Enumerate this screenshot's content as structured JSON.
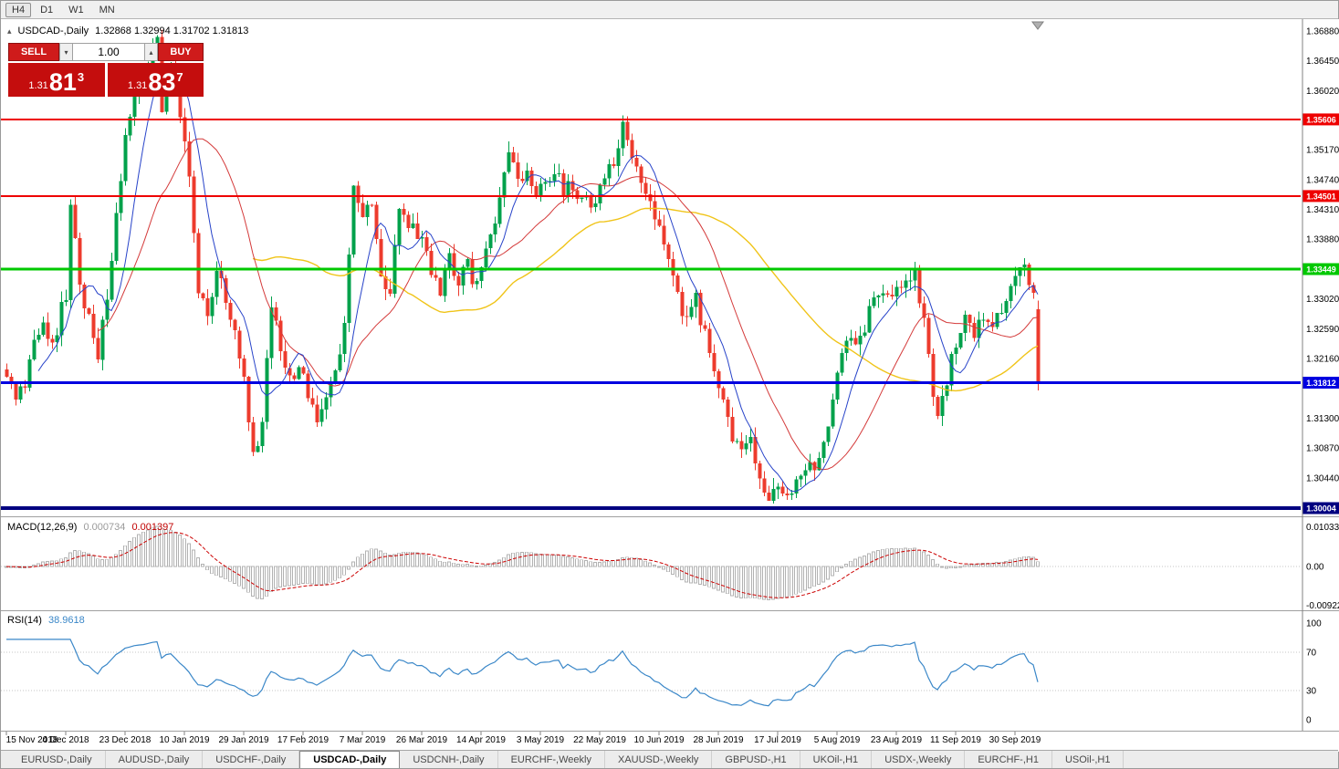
{
  "toolbar": {
    "timeframes": [
      "H4",
      "D1",
      "W1",
      "MN"
    ],
    "highlighted": "H4"
  },
  "header": {
    "symbol": "USDCAD-,Daily",
    "quote": "1.32868 1.32994 1.31702 1.31813"
  },
  "icons": {
    "collapse": "▴",
    "caret_down": "▾",
    "caret_up": "▴"
  },
  "trade": {
    "sell_label": "SELL",
    "buy_label": "BUY",
    "volume": "1.00",
    "sell_price": {
      "prefix": "1.31",
      "big": "81",
      "pip": "3"
    },
    "buy_price": {
      "prefix": "1.31",
      "big": "83",
      "pip": "7"
    }
  },
  "indicators": {
    "macd": {
      "name": "MACD(12,26,9)",
      "value_main": "0.000734",
      "value_signal": "0.001397"
    },
    "rsi": {
      "name": "RSI(14)",
      "value": "38.9618"
    }
  },
  "tabs": {
    "items": [
      {
        "label": "EURUSD-,Daily",
        "active": false
      },
      {
        "label": "AUDUSD-,Daily",
        "active": false
      },
      {
        "label": "USDCHF-,Daily",
        "active": false
      },
      {
        "label": "USDCAD-,Daily",
        "active": true
      },
      {
        "label": "USDCNH-,Daily",
        "active": false
      },
      {
        "label": "EURCHF-,Weekly",
        "active": false
      },
      {
        "label": "XAUUSD-,Weekly",
        "active": false
      },
      {
        "label": "GBPUSD-,H1",
        "active": false
      },
      {
        "label": "UKOil-,H1",
        "active": false
      },
      {
        "label": "USDX-,Weekly",
        "active": false
      },
      {
        "label": "EURCHF-,H1",
        "active": false
      },
      {
        "label": "USOil-,H1",
        "active": false
      }
    ]
  },
  "chart_data": {
    "type": "candlestick",
    "symbol": "USDCAD",
    "timeframe": "Daily",
    "last_ohlc": {
      "open": 1.32868,
      "high": 1.32994,
      "low": 1.31702,
      "close": 1.31813
    },
    "candle_count": 227,
    "price_range": [
      1.2986,
      1.3705
    ],
    "y_axis_ticks": [
      "1.36880",
      "1.36450",
      "1.36020",
      "1.35170",
      "1.34740",
      "1.34310",
      "1.33880",
      "1.33020",
      "1.32590",
      "1.32160",
      "1.31300",
      "1.30870",
      "1.30440"
    ],
    "x_axis_labels": [
      "15 Nov 2018",
      "4 Dec 2018",
      "23 Dec 2018",
      "10 Jan 2019",
      "29 Jan 2019",
      "17 Feb 2019",
      "7 Mar 2019",
      "26 Mar 2019",
      "14 Apr 2019",
      "3 May 2019",
      "22 May 2019",
      "10 Jun 2019",
      "28 Jun 2019",
      "17 Jul 2019",
      "5 Aug 2019",
      "23 Aug 2019",
      "11 Sep 2019",
      "30 Sep 2019"
    ],
    "x_label_step": 13,
    "levels": [
      {
        "name": "resistance-upper",
        "price": 1.35606,
        "label": "1.35606",
        "color": "#ee0000",
        "width": 2
      },
      {
        "name": "resistance-lower",
        "price": 1.34501,
        "label": "1.34501",
        "color": "#ee0000",
        "width": 2
      },
      {
        "name": "pivot-green",
        "price": 1.33449,
        "label": "1.33449",
        "color": "#00c800",
        "width": 3
      },
      {
        "name": "support-blue",
        "price": 1.31812,
        "label": "1.31812",
        "color": "#0000e0",
        "width": 3
      },
      {
        "name": "support-navy",
        "price": 1.30004,
        "label": "1.30004",
        "color": "#000080",
        "width": 4
      }
    ],
    "moving_averages": [
      {
        "period": 55,
        "color": "#f0c419",
        "width": 1.4
      },
      {
        "period": 21,
        "color": "#d43a3a",
        "width": 1
      },
      {
        "period": 8,
        "color": "#2743c9",
        "width": 1
      }
    ],
    "macd_axis": [
      "0.0103311",
      "0.00",
      "-0.0092203"
    ],
    "rsi_axis": [
      "100",
      "70",
      "30",
      "0"
    ],
    "rsi_levels": [
      70,
      30
    ],
    "rsi_last_value": 38.9618,
    "colors": {
      "bull": "#00a14b",
      "bear": "#ed3b2d",
      "macd_hist_stroke": "#b2b2b2",
      "macd_signal": "#cc0000",
      "rsi": "#3a87c8"
    },
    "price_path_anchors": [
      [
        0,
        1.32
      ],
      [
        2,
        1.3145
      ],
      [
        4,
        1.3185
      ],
      [
        6,
        1.324
      ],
      [
        8,
        1.3272
      ],
      [
        10,
        1.323
      ],
      [
        12,
        1.329
      ],
      [
        13,
        1.33
      ],
      [
        14,
        1.3435
      ],
      [
        16,
        1.333
      ],
      [
        18,
        1.327
      ],
      [
        20,
        1.3225
      ],
      [
        22,
        1.331
      ],
      [
        24,
        1.342
      ],
      [
        26,
        1.353
      ],
      [
        28,
        1.359
      ],
      [
        30,
        1.363
      ],
      [
        32,
        1.366
      ],
      [
        33,
        1.3685
      ],
      [
        34,
        1.356
      ],
      [
        35,
        1.362
      ],
      [
        36,
        1.365
      ],
      [
        38,
        1.356
      ],
      [
        40,
        1.348
      ],
      [
        41,
        1.339
      ],
      [
        42,
        1.331
      ],
      [
        44,
        1.328
      ],
      [
        46,
        1.3348
      ],
      [
        48,
        1.33
      ],
      [
        50,
        1.326
      ],
      [
        52,
        1.318
      ],
      [
        54,
        1.3075
      ],
      [
        56,
        1.312
      ],
      [
        58,
        1.329
      ],
      [
        60,
        1.323
      ],
      [
        62,
        1.318
      ],
      [
        64,
        1.321
      ],
      [
        66,
        1.3165
      ],
      [
        68,
        1.3125
      ],
      [
        70,
        1.315
      ],
      [
        72,
        1.32
      ],
      [
        74,
        1.326
      ],
      [
        76,
        1.3455
      ],
      [
        78,
        1.342
      ],
      [
        80,
        1.344
      ],
      [
        82,
        1.333
      ],
      [
        84,
        1.331
      ],
      [
        86,
        1.344
      ],
      [
        88,
        1.341
      ],
      [
        91,
        1.338
      ],
      [
        93,
        1.334
      ],
      [
        95,
        1.331
      ],
      [
        97,
        1.336
      ],
      [
        99,
        1.333
      ],
      [
        101,
        1.335
      ],
      [
        103,
        1.332
      ],
      [
        104,
        1.334
      ],
      [
        106,
        1.339
      ],
      [
        108,
        1.345
      ],
      [
        110,
        1.352
      ],
      [
        112,
        1.347
      ],
      [
        114,
        1.349
      ],
      [
        116,
        1.3445
      ],
      [
        118,
        1.347
      ],
      [
        120,
        1.349
      ],
      [
        122,
        1.3455
      ],
      [
        124,
        1.3465
      ],
      [
        126,
        1.3445
      ],
      [
        128,
        1.344
      ],
      [
        130,
        1.346
      ],
      [
        133,
        1.35
      ],
      [
        135,
        1.356
      ],
      [
        137,
        1.3505
      ],
      [
        139,
        1.347
      ],
      [
        141,
        1.344
      ],
      [
        143,
        1.34
      ],
      [
        145,
        1.336
      ],
      [
        147,
        1.331
      ],
      [
        149,
        1.3268
      ],
      [
        151,
        1.33
      ],
      [
        153,
        1.325
      ],
      [
        155,
        1.3206
      ],
      [
        156,
        1.318
      ],
      [
        157,
        1.315
      ],
      [
        159,
        1.3108
      ],
      [
        161,
        1.3085
      ],
      [
        163,
        1.3095
      ],
      [
        165,
        1.304
      ],
      [
        167,
        1.301
      ],
      [
        169,
        1.3025
      ],
      [
        171,
        1.3008
      ],
      [
        173,
        1.303
      ],
      [
        175,
        1.3055
      ],
      [
        177,
        1.3058
      ],
      [
        179,
        1.309
      ],
      [
        181,
        1.315
      ],
      [
        182,
        1.319
      ],
      [
        184,
        1.3245
      ],
      [
        186,
        1.3225
      ],
      [
        188,
        1.3265
      ],
      [
        190,
        1.33
      ],
      [
        192,
        1.332
      ],
      [
        194,
        1.3295
      ],
      [
        195,
        1.3315
      ],
      [
        197,
        1.334
      ],
      [
        199,
        1.3335
      ],
      [
        201,
        1.327
      ],
      [
        203,
        1.317
      ],
      [
        204,
        1.314
      ],
      [
        206,
        1.3182
      ],
      [
        208,
        1.3242
      ],
      [
        210,
        1.327
      ],
      [
        212,
        1.3254
      ],
      [
        214,
        1.3278
      ],
      [
        216,
        1.3264
      ],
      [
        218,
        1.3292
      ],
      [
        220,
        1.3312
      ],
      [
        222,
        1.334
      ],
      [
        223,
        1.335
      ],
      [
        224,
        1.333
      ],
      [
        225,
        1.33
      ],
      [
        226,
        1.3181
      ]
    ]
  }
}
